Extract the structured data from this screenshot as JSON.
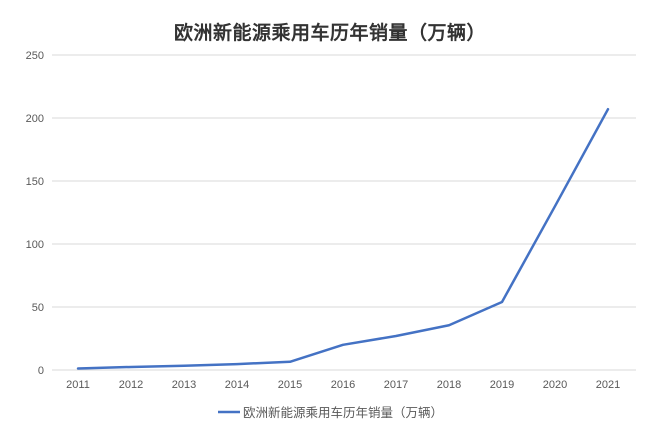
{
  "chart_data": {
    "type": "line",
    "title": "欧洲新能源乘用车历年销量（万辆）",
    "legend": {
      "position": "bottom",
      "entries": [
        "欧洲新能源乘用车历年销量（万辆）"
      ]
    },
    "categories": [
      "2011",
      "2012",
      "2013",
      "2014",
      "2015",
      "2016",
      "2017",
      "2018",
      "2019",
      "2020",
      "2021"
    ],
    "series": [
      {
        "name": "欧洲新能源乘用车历年销量（万辆）",
        "values": [
          1.2,
          2.4,
          3.4,
          4.7,
          6.5,
          20,
          27,
          35.5,
          54,
          130,
          207
        ]
      }
    ],
    "xlabel": "",
    "ylabel": "",
    "ylim": [
      0,
      250
    ],
    "yticks": [
      0,
      50,
      100,
      150,
      200,
      250
    ],
    "grid": "horizontal",
    "colors": {
      "line": "#4472C4",
      "gridline": "#D9D9D9",
      "tick_label": "#595959",
      "title": "#333333",
      "background": "#FFFFFF"
    }
  }
}
